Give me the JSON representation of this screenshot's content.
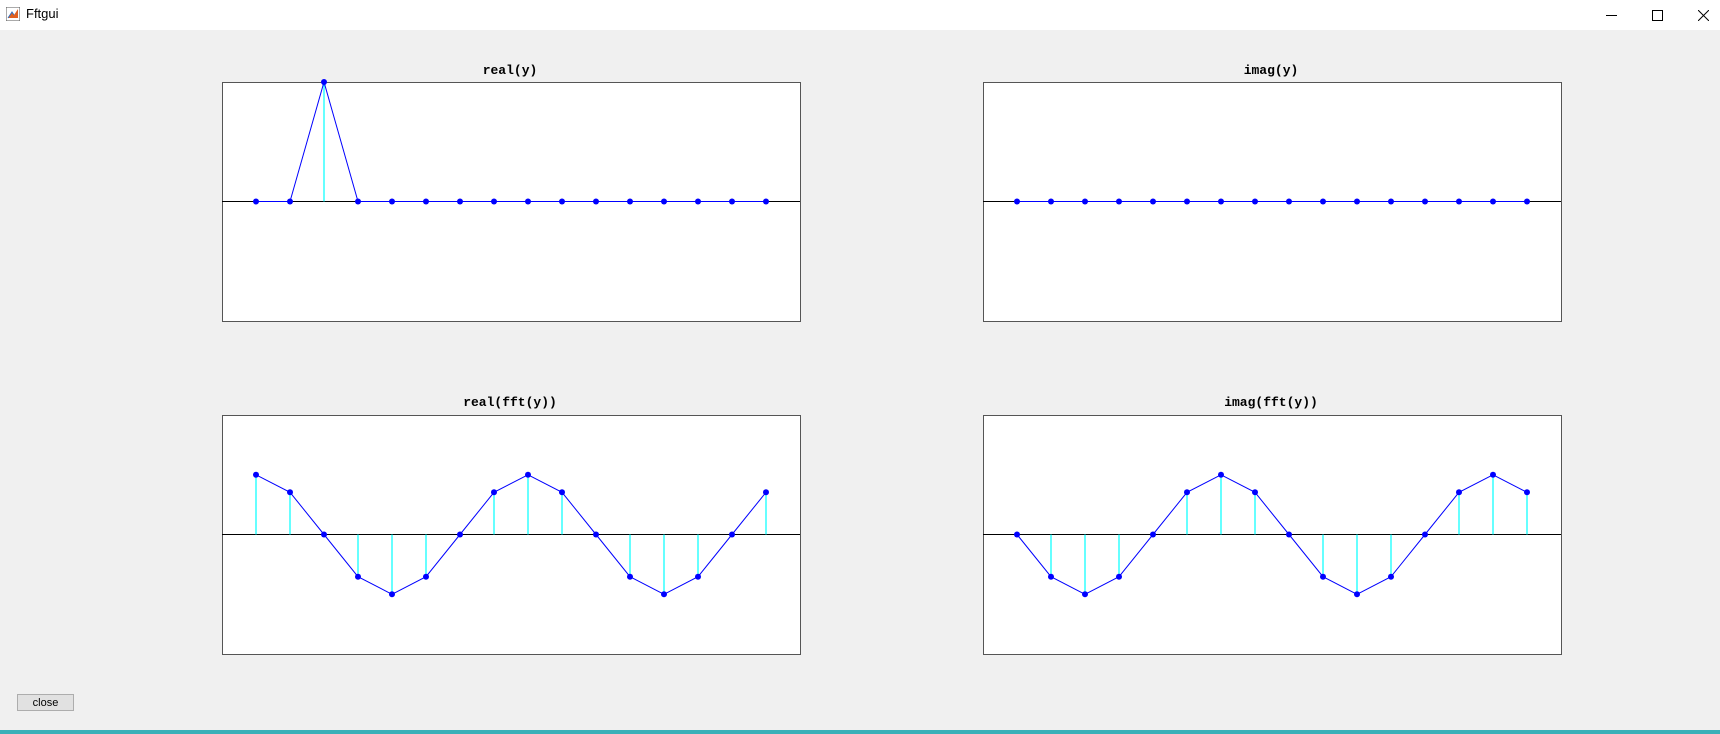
{
  "window": {
    "title": "Fftgui",
    "icon": "matlab-icon",
    "controls": [
      "minimize-icon",
      "maximize-icon",
      "close-icon"
    ]
  },
  "close_button": {
    "label": "close"
  },
  "colors": {
    "marker": "#0000ff",
    "line": "#0000ff",
    "stem": "#00ffff",
    "axes_bg": "#ffffff",
    "figure_bg": "#f0f0f0"
  },
  "chart_data": [
    {
      "type": "line",
      "title": "real(y)",
      "x": [
        0,
        1,
        2,
        3,
        4,
        5,
        6,
        7,
        8,
        9,
        10,
        11,
        12,
        13,
        14,
        15
      ],
      "values": [
        0,
        0,
        1,
        0,
        0,
        0,
        0,
        0,
        0,
        0,
        0,
        0,
        0,
        0,
        0,
        0
      ],
      "xlim": [
        -1,
        16
      ],
      "ylim": [
        -1,
        1
      ],
      "stems": true
    },
    {
      "type": "line",
      "title": "imag(y)",
      "x": [
        0,
        1,
        2,
        3,
        4,
        5,
        6,
        7,
        8,
        9,
        10,
        11,
        12,
        13,
        14,
        15
      ],
      "values": [
        0,
        0,
        0,
        0,
        0,
        0,
        0,
        0,
        0,
        0,
        0,
        0,
        0,
        0,
        0,
        0
      ],
      "xlim": [
        -1,
        16
      ],
      "ylim": [
        -1,
        1
      ],
      "stems": true
    },
    {
      "type": "line",
      "title": "real(fft(y))",
      "x": [
        0,
        1,
        2,
        3,
        4,
        5,
        6,
        7,
        8,
        9,
        10,
        11,
        12,
        13,
        14,
        15
      ],
      "values": [
        1,
        0.707,
        0,
        -0.707,
        -1,
        -0.707,
        0,
        0.707,
        1,
        0.707,
        0,
        -0.707,
        -1,
        -0.707,
        0,
        0.707
      ],
      "xlim": [
        -1,
        16
      ],
      "ylim": [
        -2,
        2
      ],
      "stems": true
    },
    {
      "type": "line",
      "title": "imag(fft(y))",
      "x": [
        0,
        1,
        2,
        3,
        4,
        5,
        6,
        7,
        8,
        9,
        10,
        11,
        12,
        13,
        14,
        15
      ],
      "values": [
        0,
        -0.707,
        -1,
        -0.707,
        0,
        0.707,
        1,
        0.707,
        0,
        -0.707,
        -1,
        -0.707,
        0,
        0.707,
        1,
        0.707
      ],
      "xlim": [
        -1,
        16
      ],
      "ylim": [
        -2,
        2
      ],
      "stems": true
    }
  ]
}
